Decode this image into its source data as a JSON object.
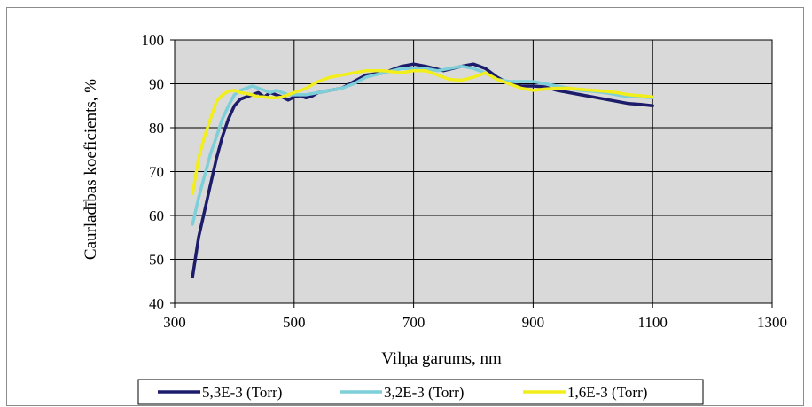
{
  "chart_data": {
    "type": "line",
    "xlabel": "Vilņa garums, nm",
    "ylabel": "Caurladības koeficients, %",
    "xlim": [
      300,
      1300
    ],
    "ylim": [
      40,
      100
    ],
    "xticks": [
      300,
      500,
      700,
      900,
      1100,
      1300
    ],
    "yticks": [
      40,
      50,
      60,
      70,
      80,
      90,
      100
    ],
    "grid": true,
    "legend_position": "bottom",
    "series": [
      {
        "name": "5,3E-3 (Torr)",
        "color": "#1c1c6b",
        "points": [
          [
            330,
            46
          ],
          [
            340,
            55
          ],
          [
            350,
            61
          ],
          [
            360,
            67
          ],
          [
            370,
            73
          ],
          [
            380,
            78
          ],
          [
            390,
            82
          ],
          [
            400,
            85
          ],
          [
            410,
            86.5
          ],
          [
            420,
            87
          ],
          [
            430,
            87.5
          ],
          [
            440,
            88
          ],
          [
            450,
            87
          ],
          [
            460,
            88
          ],
          [
            470,
            87.5
          ],
          [
            480,
            87
          ],
          [
            490,
            86.3
          ],
          [
            500,
            87
          ],
          [
            510,
            87.3
          ],
          [
            520,
            86.8
          ],
          [
            530,
            87.2
          ],
          [
            540,
            88
          ],
          [
            560,
            88.5
          ],
          [
            580,
            89
          ],
          [
            600,
            90.5
          ],
          [
            620,
            92
          ],
          [
            650,
            92.5
          ],
          [
            680,
            94
          ],
          [
            700,
            94.5
          ],
          [
            720,
            94
          ],
          [
            750,
            93
          ],
          [
            780,
            94
          ],
          [
            800,
            94.5
          ],
          [
            820,
            93.5
          ],
          [
            840,
            91.5
          ],
          [
            860,
            90
          ],
          [
            880,
            89.5
          ],
          [
            900,
            89.5
          ],
          [
            920,
            89.3
          ],
          [
            940,
            88.5
          ],
          [
            960,
            88
          ],
          [
            980,
            87.5
          ],
          [
            1000,
            87
          ],
          [
            1020,
            86.5
          ],
          [
            1040,
            86
          ],
          [
            1060,
            85.5
          ],
          [
            1080,
            85.3
          ],
          [
            1100,
            85
          ]
        ]
      },
      {
        "name": "3,2E-3 (Torr)",
        "color": "#7dcfd9",
        "points": [
          [
            330,
            58
          ],
          [
            340,
            64
          ],
          [
            350,
            69
          ],
          [
            360,
            74
          ],
          [
            370,
            78
          ],
          [
            380,
            82
          ],
          [
            390,
            85
          ],
          [
            400,
            87.5
          ],
          [
            410,
            88.5
          ],
          [
            420,
            89
          ],
          [
            430,
            89.5
          ],
          [
            440,
            89
          ],
          [
            450,
            88.5
          ],
          [
            460,
            88
          ],
          [
            470,
            88.5
          ],
          [
            480,
            88
          ],
          [
            490,
            87.5
          ],
          [
            500,
            87.5
          ],
          [
            520,
            87.5
          ],
          [
            540,
            88
          ],
          [
            560,
            88.5
          ],
          [
            580,
            89
          ],
          [
            600,
            90
          ],
          [
            620,
            91.5
          ],
          [
            650,
            92.5
          ],
          [
            680,
            93.5
          ],
          [
            700,
            93.5
          ],
          [
            720,
            93.5
          ],
          [
            740,
            93
          ],
          [
            760,
            93.5
          ],
          [
            780,
            94
          ],
          [
            800,
            93.5
          ],
          [
            820,
            92.5
          ],
          [
            840,
            91
          ],
          [
            860,
            90.5
          ],
          [
            880,
            90.5
          ],
          [
            900,
            90.5
          ],
          [
            920,
            90
          ],
          [
            940,
            89.5
          ],
          [
            960,
            89
          ],
          [
            980,
            88.5
          ],
          [
            1000,
            88.3
          ],
          [
            1020,
            88
          ],
          [
            1040,
            87.5
          ],
          [
            1060,
            87
          ],
          [
            1080,
            87
          ],
          [
            1100,
            86.8
          ]
        ]
      },
      {
        "name": "1,6E-3 (Torr)",
        "color": "#f2ee1c",
        "points": [
          [
            330,
            65
          ],
          [
            340,
            73
          ],
          [
            350,
            78
          ],
          [
            360,
            82
          ],
          [
            370,
            86
          ],
          [
            380,
            87.5
          ],
          [
            390,
            88.3
          ],
          [
            400,
            88.5
          ],
          [
            410,
            88
          ],
          [
            420,
            87.8
          ],
          [
            430,
            87.5
          ],
          [
            440,
            87
          ],
          [
            450,
            87
          ],
          [
            460,
            86.8
          ],
          [
            470,
            86.8
          ],
          [
            480,
            87
          ],
          [
            490,
            87.5
          ],
          [
            500,
            88
          ],
          [
            520,
            89
          ],
          [
            540,
            90.5
          ],
          [
            560,
            91.5
          ],
          [
            580,
            92
          ],
          [
            600,
            92.5
          ],
          [
            620,
            93
          ],
          [
            650,
            93
          ],
          [
            680,
            92.5
          ],
          [
            700,
            93
          ],
          [
            720,
            93
          ],
          [
            740,
            92
          ],
          [
            760,
            91
          ],
          [
            780,
            90.8
          ],
          [
            800,
            91.5
          ],
          [
            820,
            92.5
          ],
          [
            840,
            91
          ],
          [
            860,
            90
          ],
          [
            880,
            89
          ],
          [
            900,
            88.5
          ],
          [
            920,
            88.8
          ],
          [
            940,
            89
          ],
          [
            960,
            89
          ],
          [
            980,
            88.7
          ],
          [
            1000,
            88.5
          ],
          [
            1020,
            88.3
          ],
          [
            1040,
            88
          ],
          [
            1060,
            87.5
          ],
          [
            1080,
            87.3
          ],
          [
            1100,
            87
          ]
        ]
      }
    ]
  }
}
